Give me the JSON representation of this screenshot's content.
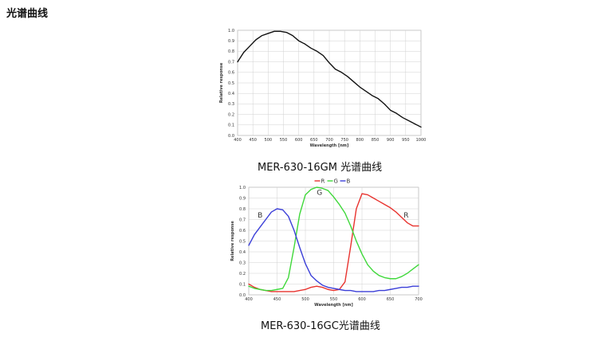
{
  "page": {
    "title": "光谱曲线"
  },
  "chart_data": [
    {
      "id": "mono",
      "type": "line",
      "caption": "MER-630-16GM 光谱曲线",
      "xlabel": "Wavelength [nm]",
      "ylabel": "Relative response",
      "xlim": [
        400,
        1000
      ],
      "ylim": [
        0,
        1.0
      ],
      "x_ticks": [
        400,
        450,
        500,
        550,
        600,
        650,
        700,
        750,
        800,
        850,
        900,
        950,
        1000
      ],
      "y_ticks": [
        0.0,
        0.1,
        0.2,
        0.3,
        0.4,
        0.5,
        0.6,
        0.7,
        0.8,
        0.9,
        1.0
      ],
      "grid": true,
      "series": [
        {
          "color": "#111111",
          "x": [
            400,
            420,
            440,
            460,
            480,
            500,
            520,
            540,
            560,
            580,
            600,
            620,
            640,
            660,
            680,
            700,
            720,
            740,
            760,
            780,
            800,
            820,
            840,
            860,
            880,
            900,
            920,
            940,
            960,
            980,
            1000
          ],
          "y": [
            0.7,
            0.79,
            0.85,
            0.91,
            0.95,
            0.97,
            0.99,
            0.99,
            0.98,
            0.95,
            0.9,
            0.87,
            0.83,
            0.8,
            0.76,
            0.69,
            0.63,
            0.6,
            0.56,
            0.51,
            0.46,
            0.42,
            0.38,
            0.35,
            0.3,
            0.24,
            0.21,
            0.17,
            0.14,
            0.11,
            0.08
          ]
        }
      ]
    },
    {
      "id": "color",
      "type": "line",
      "caption": "MER-630-16GC光谱曲线",
      "xlabel": "Wavelength [nm]",
      "ylabel": "Relative response",
      "xlim": [
        400,
        700
      ],
      "ylim": [
        0,
        1.0
      ],
      "x_ticks": [
        400,
        450,
        500,
        550,
        600,
        650,
        700
      ],
      "y_ticks": [
        0.0,
        0.1,
        0.2,
        0.3,
        0.4,
        0.5,
        0.6,
        0.7,
        0.8,
        0.9,
        1.0
      ],
      "grid": true,
      "legend": {
        "placement": "top",
        "entries": [
          "R",
          "G",
          "B"
        ]
      },
      "annotations": [
        {
          "text": "B",
          "x": 420,
          "y": 0.72
        },
        {
          "text": "G",
          "x": 525,
          "y": 0.93
        },
        {
          "text": "R",
          "x": 678,
          "y": 0.72
        }
      ],
      "series": [
        {
          "name": "R",
          "color": "#e8332f",
          "x": [
            400,
            410,
            420,
            430,
            440,
            450,
            460,
            470,
            480,
            490,
            500,
            510,
            520,
            530,
            540,
            550,
            560,
            570,
            580,
            590,
            600,
            610,
            620,
            630,
            640,
            650,
            660,
            670,
            680,
            690,
            700
          ],
          "y": [
            0.1,
            0.07,
            0.05,
            0.04,
            0.03,
            0.03,
            0.03,
            0.03,
            0.03,
            0.04,
            0.05,
            0.07,
            0.08,
            0.07,
            0.05,
            0.04,
            0.05,
            0.12,
            0.45,
            0.8,
            0.94,
            0.93,
            0.9,
            0.87,
            0.84,
            0.81,
            0.77,
            0.72,
            0.67,
            0.64,
            0.64
          ]
        },
        {
          "name": "G",
          "color": "#3fd83a",
          "x": [
            400,
            410,
            420,
            430,
            440,
            450,
            460,
            470,
            480,
            490,
            500,
            510,
            520,
            530,
            540,
            550,
            560,
            570,
            580,
            590,
            600,
            610,
            620,
            630,
            640,
            650,
            660,
            670,
            680,
            690,
            700
          ],
          "y": [
            0.08,
            0.06,
            0.05,
            0.04,
            0.04,
            0.05,
            0.06,
            0.16,
            0.44,
            0.75,
            0.93,
            0.98,
            1.0,
            0.99,
            0.97,
            0.91,
            0.84,
            0.76,
            0.64,
            0.5,
            0.38,
            0.28,
            0.22,
            0.18,
            0.16,
            0.15,
            0.15,
            0.17,
            0.2,
            0.24,
            0.28
          ]
        },
        {
          "name": "B",
          "color": "#3b3fd8",
          "x": [
            400,
            410,
            420,
            430,
            440,
            450,
            460,
            470,
            480,
            490,
            500,
            510,
            520,
            530,
            540,
            550,
            560,
            570,
            580,
            590,
            600,
            610,
            620,
            630,
            640,
            650,
            660,
            670,
            680,
            690,
            700
          ],
          "y": [
            0.46,
            0.56,
            0.63,
            0.7,
            0.77,
            0.8,
            0.79,
            0.73,
            0.6,
            0.44,
            0.29,
            0.18,
            0.13,
            0.09,
            0.07,
            0.06,
            0.05,
            0.04,
            0.04,
            0.03,
            0.03,
            0.03,
            0.03,
            0.04,
            0.04,
            0.05,
            0.06,
            0.07,
            0.07,
            0.08,
            0.08
          ]
        }
      ]
    }
  ]
}
